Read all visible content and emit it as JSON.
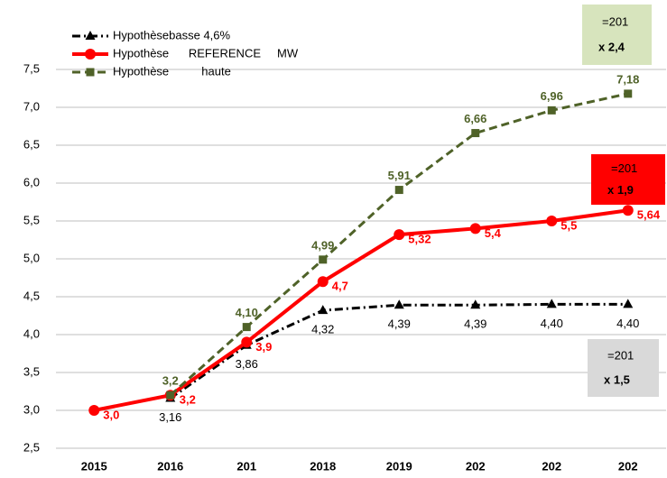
{
  "chart_data": {
    "type": "line",
    "categories": [
      "2015",
      "2016",
      "201",
      "2018",
      "2019",
      "202",
      "202",
      "202"
    ],
    "ylim": [
      2.5,
      7.5
    ],
    "yticks": [
      {
        "value": 2.5,
        "label": "2,5"
      },
      {
        "value": 3.0,
        "label": "3,0"
      },
      {
        "value": 3.5,
        "label": "3,5"
      },
      {
        "value": 4.0,
        "label": "4,0"
      },
      {
        "value": 4.5,
        "label": "4,5"
      },
      {
        "value": 5.0,
        "label": "5,0"
      },
      {
        "value": 5.5,
        "label": "5,5"
      },
      {
        "value": 6.0,
        "label": "6,0"
      },
      {
        "value": 6.5,
        "label": "6,5"
      },
      {
        "value": 7.0,
        "label": "7,0"
      },
      {
        "value": 7.5,
        "label": "7,5"
      }
    ],
    "grid": true,
    "series": [
      {
        "name": "Hypothèsebasse 4,6%",
        "color": "#000000",
        "marker": "triangle",
        "values": [
          null,
          3.16,
          3.86,
          4.32,
          4.39,
          4.39,
          4.4,
          4.4
        ],
        "value_labels": [
          null,
          "3,16",
          "3,86",
          "4,32",
          "4,39",
          "4,39",
          "4,40",
          "4,40"
        ]
      },
      {
        "name": "Hypothèse      REFERENCE     MW",
        "color": "#ff0000",
        "marker": "circle",
        "values": [
          3.0,
          3.2,
          3.9,
          4.7,
          5.32,
          5.4,
          5.5,
          5.64
        ],
        "value_labels": [
          "3,0",
          "3,2",
          "3,9",
          "4,7",
          "5,32",
          "5,4",
          "5,5",
          "5,64"
        ]
      },
      {
        "name": "Hypothèse          haute",
        "color": "#4f6228",
        "marker": "square",
        "values": [
          null,
          3.2,
          4.1,
          4.99,
          5.91,
          6.66,
          6.96,
          7.18
        ],
        "value_labels": [
          null,
          "3,2",
          "4,10",
          "4,99",
          "5,91",
          "6,66",
          "6,96",
          "7,18"
        ]
      }
    ],
    "annotations": [
      {
        "text": "=201",
        "sub": "x 2,4",
        "fill": "#d7e4bd"
      },
      {
        "text": "=201",
        "sub": "x 1,9",
        "fill": "#ff0000"
      },
      {
        "text": "=201",
        "sub": "x 1,5",
        "fill": "#d9d9d9"
      }
    ]
  }
}
